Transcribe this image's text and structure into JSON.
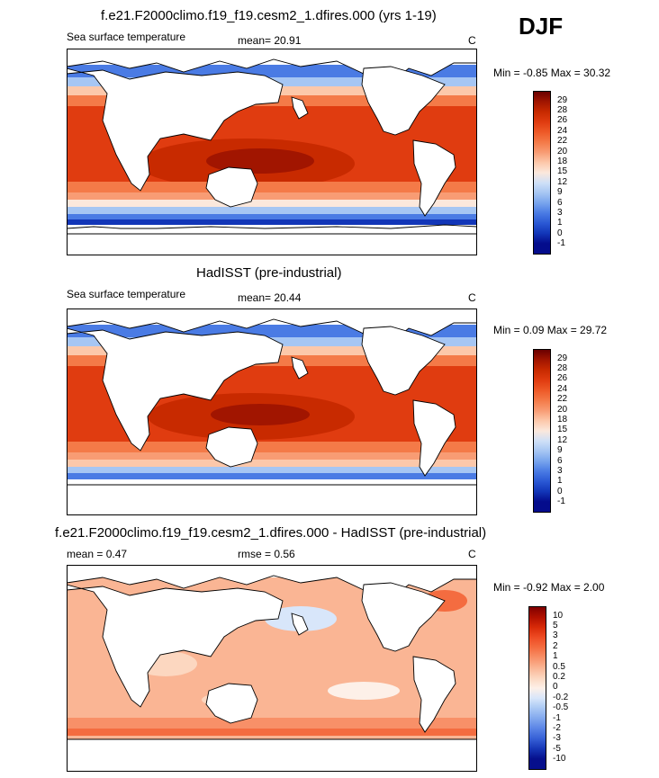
{
  "season": "DJF",
  "panels": [
    {
      "title": "f.e21.F2000climo.f19_f19.cesm2_1.dfires.000 (yrs 1-19)",
      "left_label": "Sea surface temperature",
      "center_label": "mean=  20.91",
      "unit": "C",
      "minmax": "Min =  -0.85 Max =  30.32",
      "colorbar_labels": [
        "29",
        "28",
        "26",
        "24",
        "22",
        "20",
        "18",
        "15",
        "12",
        "9",
        "6",
        "3",
        "1",
        "0",
        "-1"
      ]
    },
    {
      "title": "HadISST (pre-industrial)",
      "left_label": "Sea surface temperature",
      "center_label": "mean=  20.44",
      "unit": "C",
      "minmax": "Min =  0.09 Max =  29.72",
      "colorbar_labels": [
        "29",
        "28",
        "26",
        "24",
        "22",
        "20",
        "18",
        "15",
        "12",
        "9",
        "6",
        "3",
        "1",
        "0",
        "-1"
      ]
    },
    {
      "title": "f.e21.F2000climo.f19_f19.cesm2_1.dfires.000 - HadISST (pre-industrial)",
      "left_label": "mean =   0.47",
      "center_label": "rmse =   0.56",
      "unit": "C",
      "minmax": "Min = -0.92 Max =   2.00",
      "colorbar_labels": [
        "10",
        "5",
        "3",
        "2",
        "1",
        "0.5",
        "0.2",
        "0",
        "-0.2",
        "-0.5",
        "-1",
        "-2",
        "-3",
        "-5",
        "-10"
      ]
    }
  ],
  "colors": {
    "abs_scale": [
      "#6a0000",
      "#a11500",
      "#c82a00",
      "#e03c10",
      "#ee5a28",
      "#f47a48",
      "#f89c74",
      "#fcc8aa",
      "#fbe8dc",
      "#cfe0f7",
      "#a6c6f3",
      "#78a4ed",
      "#4a7be4",
      "#2a58d4",
      "#1236b8",
      "#040c8c"
    ],
    "diff_scale": [
      "#800000",
      "#b01000",
      "#d82a08",
      "#ee4c24",
      "#f46c40",
      "#f89068",
      "#fab594",
      "#fcd7c0",
      "#fdf0e8",
      "#d8e6fa",
      "#aac8f4",
      "#82a8ee",
      "#5a84e6",
      "#3660d6",
      "#1636b6",
      "#060f8c"
    ],
    "land": "#ffffff"
  }
}
